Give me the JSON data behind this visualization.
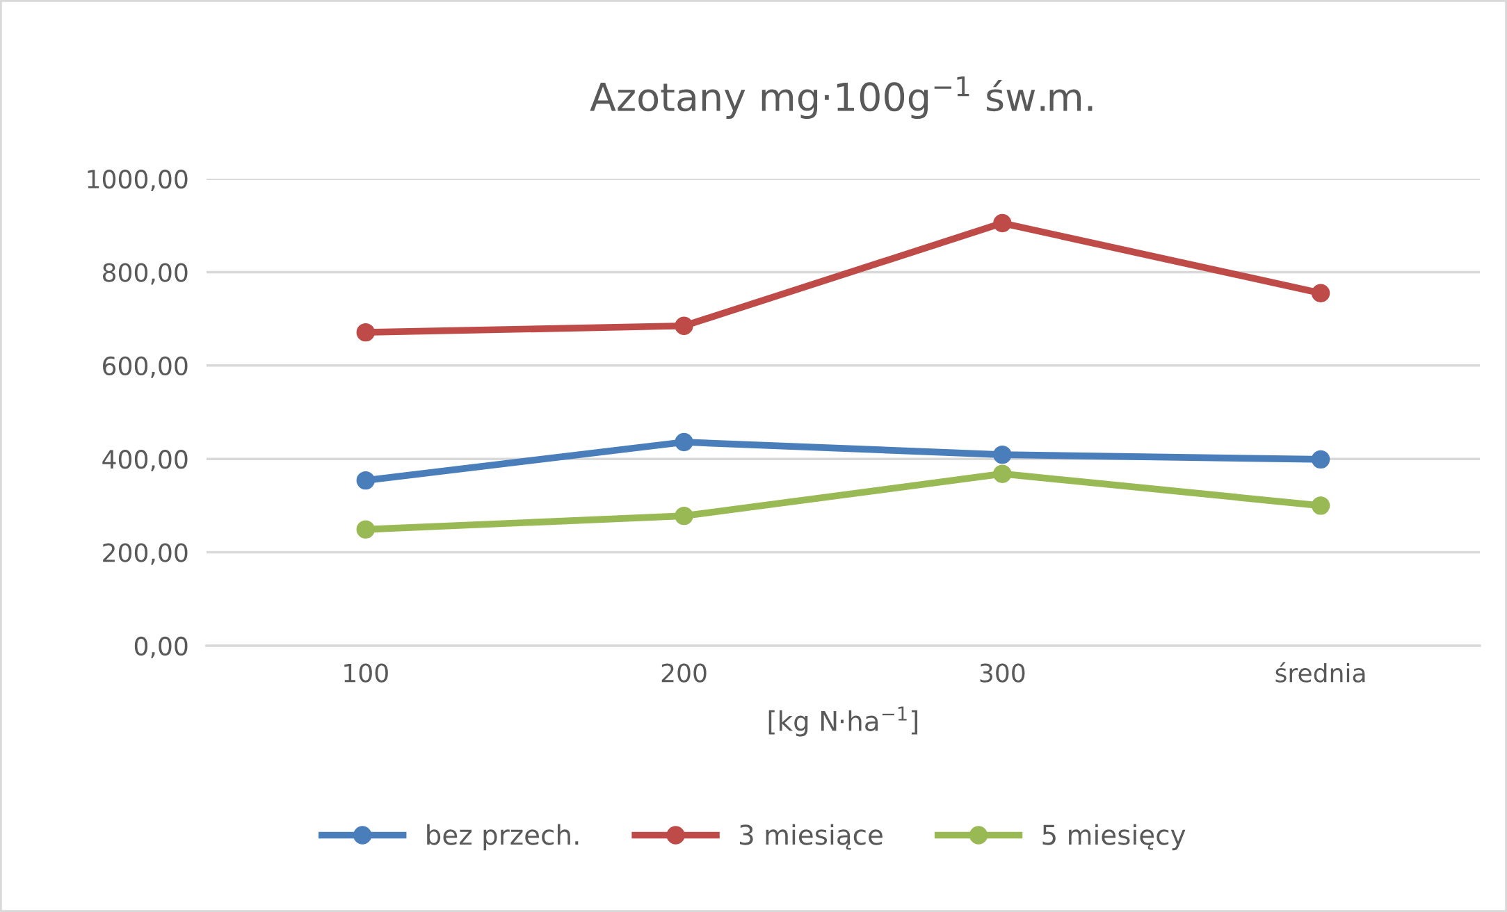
{
  "chart_data": {
    "type": "line",
    "title": "Azotany mg·100g$^{−1}$ św.m.",
    "xlabel": "[kg N·ha$^{−1}$]",
    "categories": [
      "100",
      "200",
      "300",
      "średnia"
    ],
    "series": [
      {
        "name": "bez przech.",
        "color": "#4a7ebb",
        "values": [
          354,
          436,
          409,
          399
        ]
      },
      {
        "name": "3 miesiące",
        "color": "#be4b48",
        "values": [
          671,
          685,
          905,
          755
        ]
      },
      {
        "name": "5 miesięcy",
        "color": "#98b954",
        "values": [
          249,
          278,
          368,
          300
        ]
      }
    ],
    "ylim": [
      0,
      1000
    ],
    "yticks": [
      {
        "value": 0,
        "label": "0,00"
      },
      {
        "value": 200,
        "label": "200,00"
      },
      {
        "value": 400,
        "label": "400,00"
      },
      {
        "value": 600,
        "label": "600,00"
      },
      {
        "value": 800,
        "label": "800,00"
      },
      {
        "value": 1000,
        "label": "1000,00"
      }
    ],
    "grid": "y",
    "legend": "bottom",
    "marker": "circle",
    "line_style": "solid"
  }
}
